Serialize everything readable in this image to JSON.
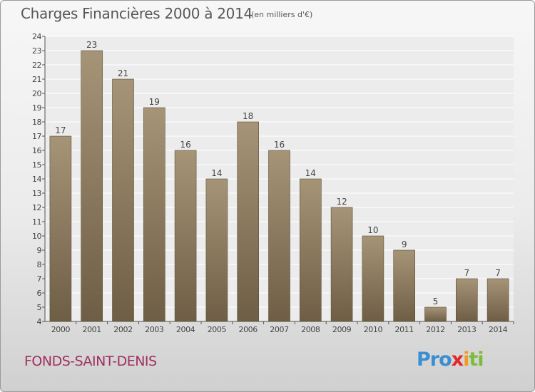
{
  "title": "Charges Financières 2000 à 2014",
  "subtitle": "(en milliers d'€)",
  "commune": "FONDS-SAINT-DENIS",
  "logo": {
    "p1": "Pro",
    "p2": "x",
    "p3": "i",
    "p4": "ti"
  },
  "colors": {
    "bar_top": "#a69477",
    "bar_bottom": "#6e5e45",
    "text": "#575757",
    "commune": "#a0305f"
  },
  "chart_data": {
    "type": "bar",
    "categories": [
      "2000",
      "2001",
      "2002",
      "2003",
      "2004",
      "2005",
      "2006",
      "2007",
      "2008",
      "2009",
      "2010",
      "2011",
      "2012",
      "2013",
      "2014"
    ],
    "values": [
      17,
      23,
      21,
      19,
      16,
      14,
      18,
      16,
      14,
      12,
      10,
      9,
      5,
      7,
      7
    ],
    "ylim": [
      4,
      24
    ],
    "yticks": [
      4,
      5,
      6,
      7,
      8,
      9,
      10,
      11,
      12,
      13,
      14,
      15,
      16,
      17,
      18,
      19,
      20,
      21,
      22,
      23,
      24
    ],
    "grid": true,
    "xlabel": "",
    "ylabel": ""
  }
}
